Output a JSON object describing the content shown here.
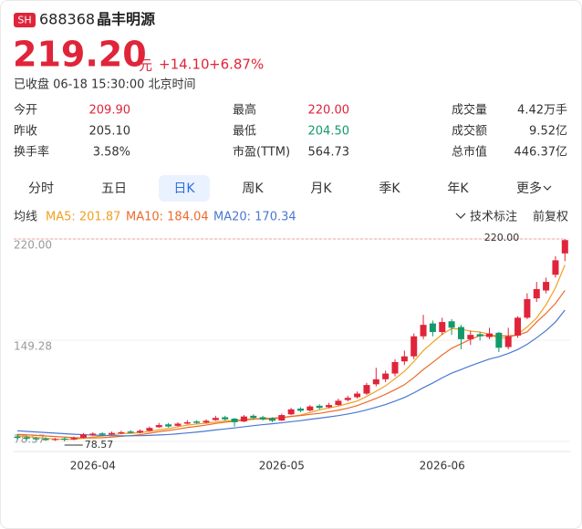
{
  "header": {
    "badge": "SH",
    "code": "688368",
    "name": "晶丰明源",
    "price": "219.20",
    "unit": "元",
    "change": "+14.10",
    "change_pct": "+6.87%",
    "status": "已收盘 06-18 15:30:00 北京时间"
  },
  "stats": [
    {
      "label": "今开",
      "value": "209.90",
      "color": "#e0243a"
    },
    {
      "label": "最高",
      "value": "220.00",
      "color": "#e0243a"
    },
    {
      "label": "成交量",
      "value": "4.42万手",
      "color": "#333333"
    },
    {
      "label": "昨收",
      "value": "205.10",
      "color": "#333333"
    },
    {
      "label": "最低",
      "value": "204.50",
      "color": "#14996a"
    },
    {
      "label": "成交额",
      "value": "9.52亿",
      "color": "#333333"
    },
    {
      "label": "换手率",
      "value": "3.58%",
      "color": "#333333"
    },
    {
      "label": "市盈(TTM)",
      "value": "564.73",
      "color": "#333333"
    },
    {
      "label": "总市值",
      "value": "446.37亿",
      "color": "#333333"
    }
  ],
  "tabs": [
    "分时",
    "五日",
    "日K",
    "周K",
    "月K",
    "季K",
    "年K",
    "更多"
  ],
  "active_tab": "日K",
  "ma_title": "均线",
  "tools": [
    "技术标注",
    "前复权"
  ],
  "chart_data": {
    "type": "candlestick",
    "categories": [
      null,
      null,
      null,
      null,
      null,
      null,
      null,
      null,
      "2026-04",
      null,
      null,
      null,
      null,
      null,
      null,
      null,
      null,
      null,
      null,
      null,
      null,
      null,
      null,
      null,
      null,
      null,
      null,
      null,
      "2026-05",
      null,
      null,
      null,
      null,
      null,
      null,
      null,
      null,
      null,
      null,
      null,
      null,
      null,
      null,
      null,
      null,
      "2026-06",
      null,
      null,
      null,
      null,
      null,
      null,
      null,
      null,
      null,
      null,
      null,
      null,
      null
    ],
    "open": [
      82,
      81.5,
      80.8,
      80.5,
      79.6,
      80.6,
      80,
      81.2,
      83,
      84.2,
      83.4,
      84.2,
      85.5,
      84.8,
      86,
      88.5,
      90.5,
      89.5,
      91,
      92.5,
      91.8,
      93.5,
      95.5,
      94.5,
      92.5,
      96.5,
      95.5,
      94.8,
      93.2,
      97.5,
      101.5,
      100.2,
      103.5,
      102.5,
      104,
      107.5,
      109.5,
      112,
      118.5,
      122,
      126,
      134.5,
      138,
      152,
      161,
      155,
      162.5,
      158.5,
      150,
      153.5,
      151.5,
      154.5,
      144.5,
      152.5,
      165,
      178.5,
      184,
      195,
      209.9
    ],
    "high": [
      83.5,
      82.5,
      81.8,
      81.5,
      81,
      81.4,
      82,
      84.5,
      85,
      85,
      85.5,
      86,
      86.5,
      87,
      89,
      91.5,
      91.5,
      92,
      93.5,
      93.5,
      94,
      96.5,
      96.5,
      95,
      97,
      97.5,
      96.5,
      95.5,
      98,
      102,
      102.5,
      104,
      104.5,
      105.5,
      108.5,
      110.5,
      113.5,
      119.5,
      130,
      128,
      136,
      142,
      154,
      167,
      163,
      165,
      164,
      160,
      156,
      155,
      158,
      155,
      158,
      166,
      182,
      190,
      193,
      208,
      220
    ],
    "low": [
      80,
      79.5,
      79.2,
      79,
      79,
      78.57,
      79.5,
      80.8,
      82.5,
      82.6,
      83,
      83.8,
      84,
      84.2,
      85.5,
      88,
      88.2,
      89,
      90.5,
      90.8,
      91,
      93,
      93.2,
      89,
      92,
      94,
      93.2,
      92,
      92.8,
      97,
      99,
      99.5,
      101,
      101.8,
      103.5,
      106.5,
      108.5,
      111,
      117,
      120,
      124,
      132,
      136,
      150,
      152,
      153,
      153,
      143,
      146,
      149,
      150,
      141,
      143,
      151,
      164,
      176,
      182,
      193,
      204.5
    ],
    "close": [
      81,
      80.5,
      80,
      79.5,
      80.2,
      79.8,
      81,
      83.5,
      84,
      83.2,
      84.5,
      85,
      84.6,
      86,
      88,
      90,
      89,
      91,
      92,
      91.5,
      93,
      95,
      94,
      92,
      96,
      95,
      94,
      93,
      97,
      101,
      100,
      103,
      102,
      104,
      107,
      109,
      112,
      118,
      122,
      126,
      134,
      138,
      152,
      160,
      155,
      162,
      158,
      150,
      153,
      152,
      154,
      144,
      152,
      165,
      178,
      185,
      190,
      205.1,
      219.2
    ],
    "up_color": "#e0243a",
    "down_color": "#14996a",
    "series": [
      {
        "legend": "MA5: 201.87",
        "color": "#f0a020",
        "values": [
          82.5,
          82,
          81.4,
          80.8,
          80.2,
          80,
          80.1,
          80.8,
          81.7,
          82.3,
          83.2,
          84,
          84.3,
          84.7,
          85.6,
          86.7,
          87.5,
          88.8,
          90,
          90.7,
          91.3,
          92.1,
          92.9,
          93.1,
          94,
          94.4,
          94.2,
          94,
          95,
          96,
          97,
          98.8,
          100.6,
          102,
          103.2,
          105,
          106.8,
          110,
          113.6,
          117.4,
          122.4,
          127.6,
          134.4,
          142,
          147.8,
          153.4,
          157.4,
          157,
          155.6,
          155,
          153.4,
          150.6,
          151,
          153.4,
          158.6,
          164.8,
          174,
          186,
          201.87
        ]
      },
      {
        "legend": "MA10: 184.04",
        "color": "#ec6a2c",
        "values": [
          83.5,
          83.2,
          82.8,
          82.4,
          82,
          81.6,
          81.2,
          81,
          81,
          81.2,
          81.6,
          82.1,
          82.6,
          83.3,
          84.3,
          85.4,
          86.2,
          87.2,
          88.3,
          89.1,
          90,
          91.1,
          92,
          92.7,
          93.5,
          94.1,
          94.6,
          94.8,
          95.3,
          96.1,
          96.6,
          97.5,
          98.2,
          99.3,
          100.4,
          101.8,
          103.6,
          106.1,
          108.6,
          111.5,
          114.7,
          118.2,
          123.2,
          128.8,
          133.8,
          139,
          143.6,
          146.8,
          149.9,
          152.5,
          152.7,
          152.3,
          152.3,
          152.8,
          155.1,
          162,
          168,
          175,
          184.04
        ]
      },
      {
        "legend": "MA20: 170.34",
        "color": "#4a78d0",
        "values": [
          86,
          85.6,
          85.2,
          84.8,
          84.4,
          84,
          83.6,
          83.3,
          83,
          82.8,
          82.6,
          82.5,
          82.5,
          82.6,
          82.8,
          83.1,
          83.4,
          83.9,
          84.5,
          85.1,
          85.8,
          86.6,
          87.3,
          88,
          88.8,
          89.6,
          90.3,
          90.9,
          91.6,
          92.4,
          93.1,
          94,
          94.8,
          95.7,
          96.6,
          97.7,
          99,
          100.6,
          102.4,
          104.3,
          106.7,
          109.3,
          112.5,
          116.1,
          119.4,
          123,
          126.3,
          128.8,
          131.4,
          133.8,
          136.1,
          137.8,
          140,
          142.8,
          146.4,
          151,
          156,
          162,
          170.34
        ]
      }
    ],
    "ylim": [
      78.57,
      220
    ],
    "yticks": [
      {
        "value": 220,
        "label": "220.00"
      },
      149.28,
      78.57
    ],
    "annotations": [
      {
        "label": "220.00",
        "value": 220
      },
      {
        "label": "78.57",
        "value": 78.57
      }
    ],
    "grid": true
  }
}
